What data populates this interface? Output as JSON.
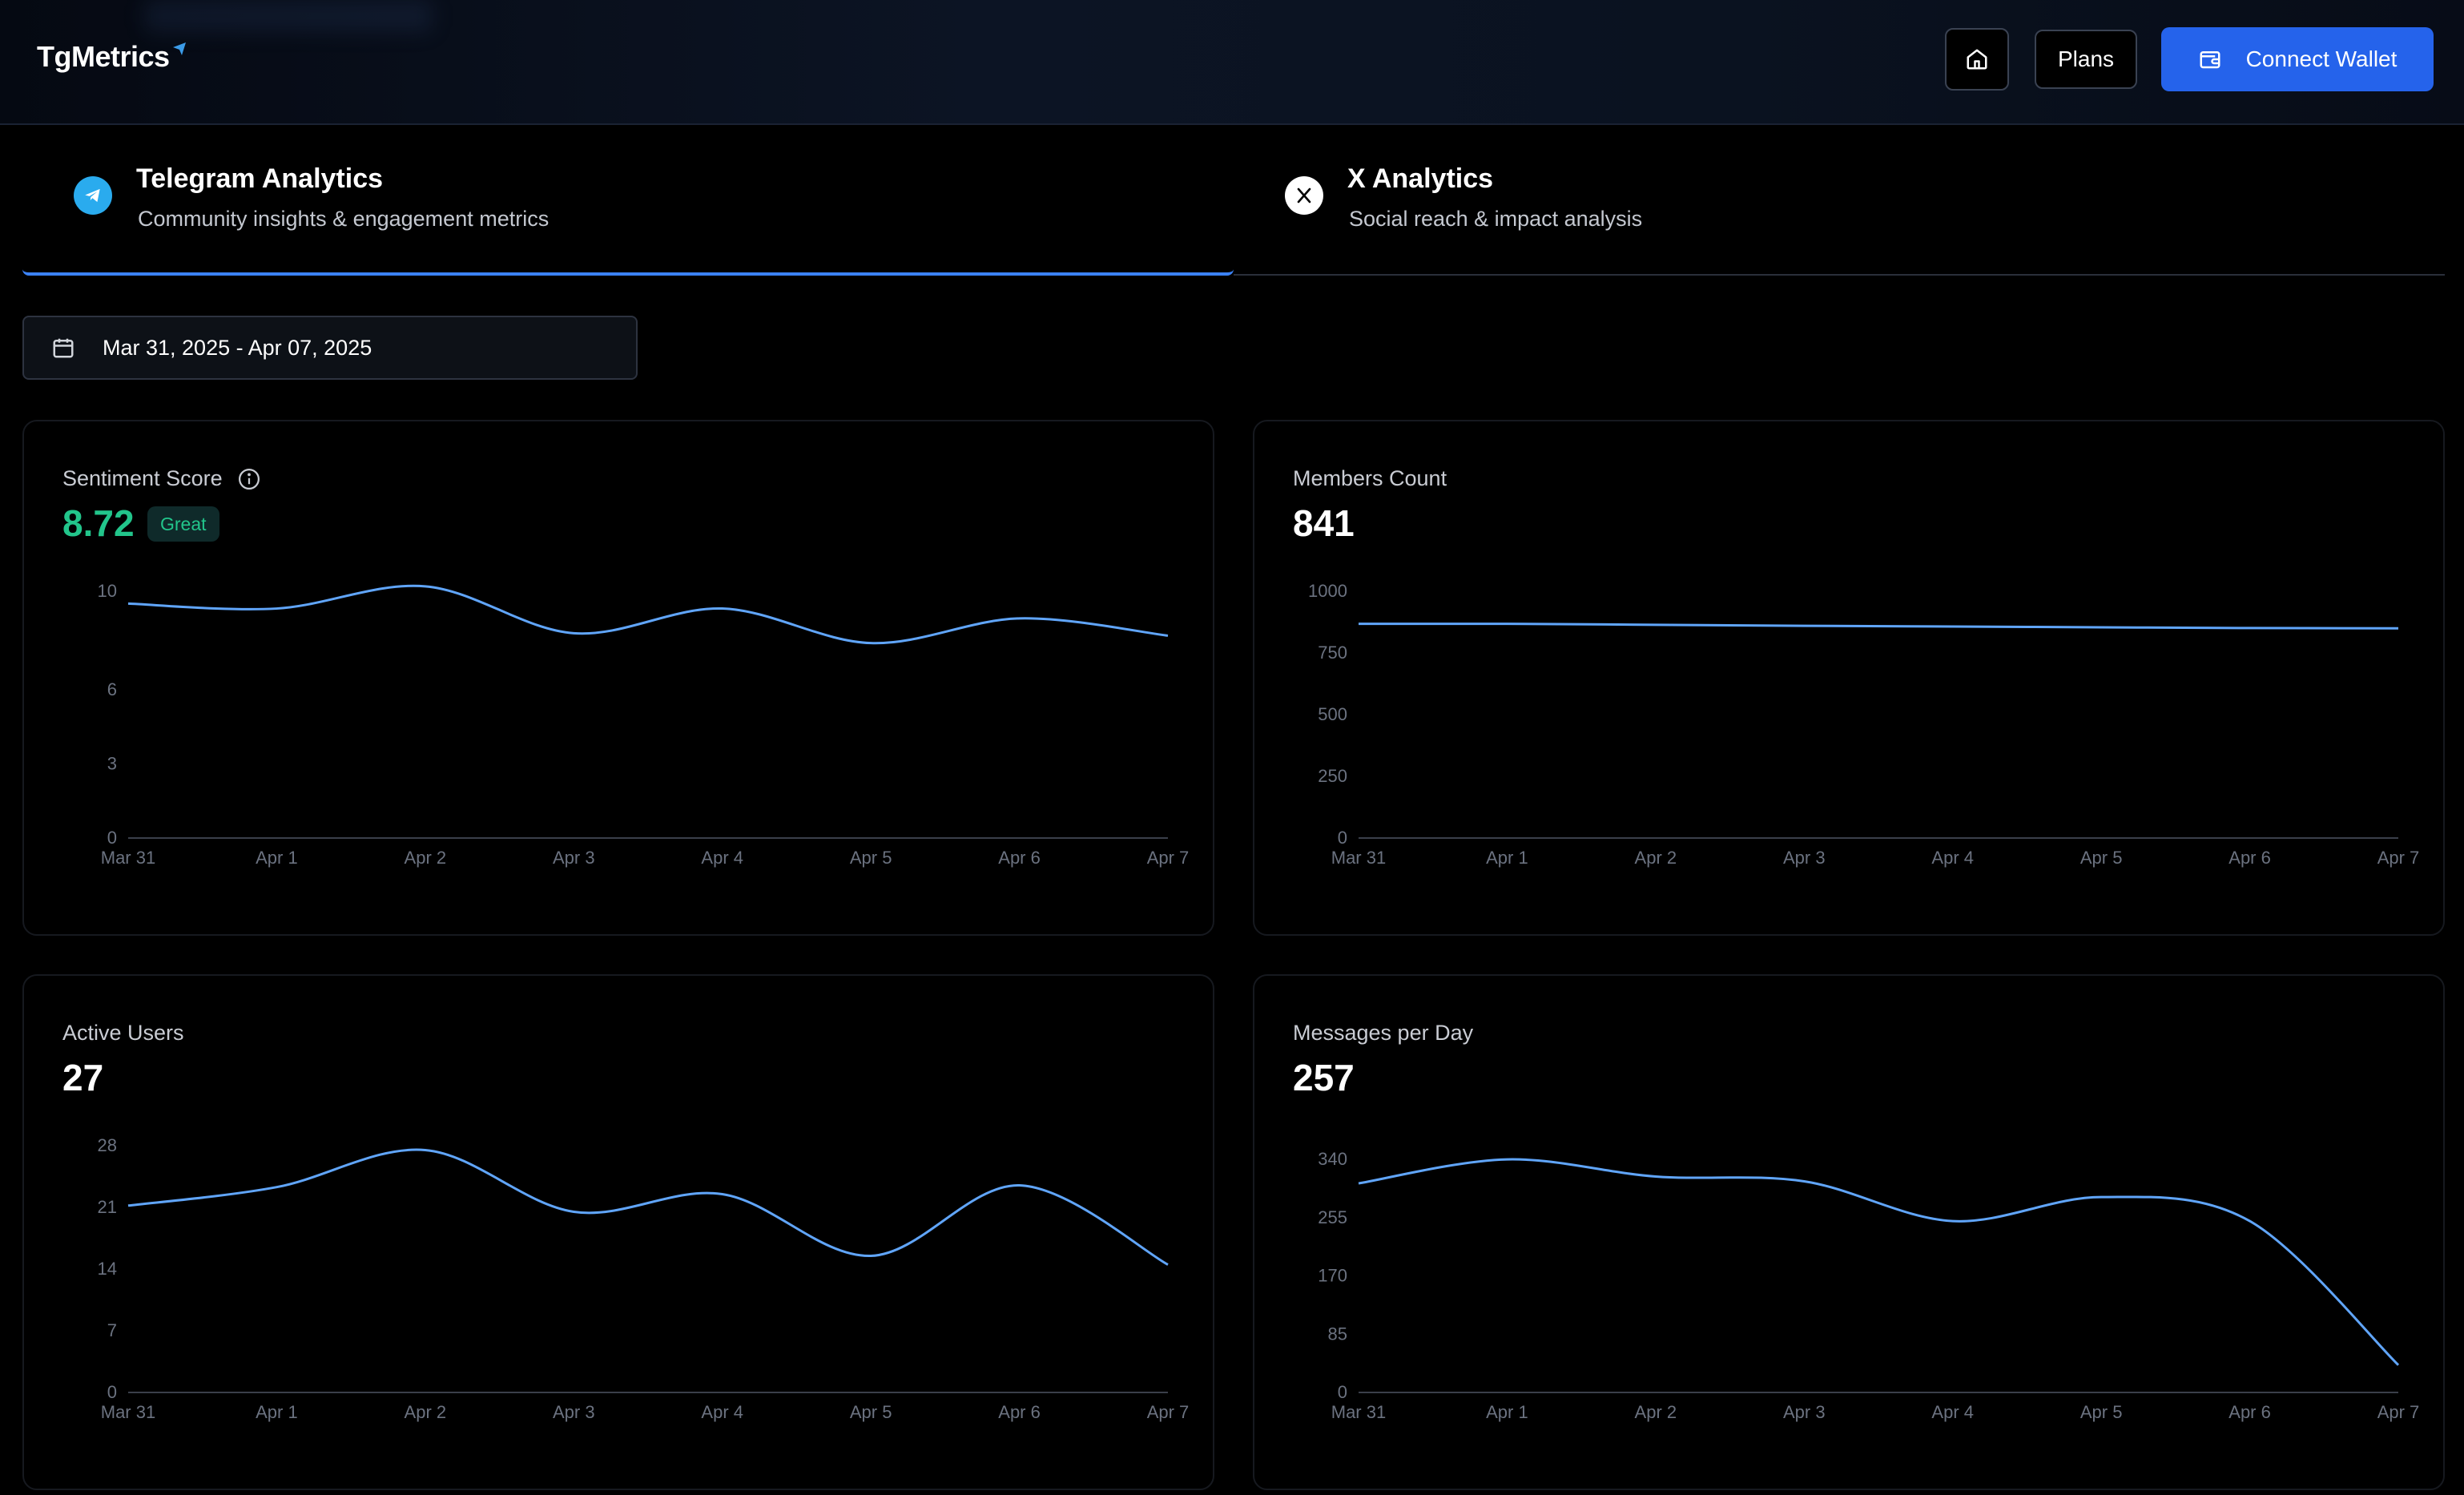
{
  "header": {
    "logo_text": "TgMetrics",
    "home_icon": "home-icon",
    "plans_label": "Plans",
    "wallet_icon": "wallet-icon",
    "wallet_label": "Connect Wallet"
  },
  "tabs": [
    {
      "title": "Telegram Analytics",
      "subtitle": "Community insights & engagement metrics",
      "icon": "telegram-icon",
      "active": true
    },
    {
      "title": "X Analytics",
      "subtitle": "Social reach & impact analysis",
      "icon": "x-logo-icon",
      "active": false
    }
  ],
  "date_range": {
    "icon": "calendar-icon",
    "value": "Mar 31, 2025 - Apr 07, 2025"
  },
  "colors": {
    "accent": "#2563eb",
    "line": "#60a5fa",
    "positive": "#22c58b"
  },
  "cards": [
    {
      "label": "Sentiment Score",
      "value": "8.72",
      "badge": "Great",
      "info_icon": "info-icon"
    },
    {
      "label": "Members Count",
      "value": "841"
    },
    {
      "label": "Active Users",
      "value": "27"
    },
    {
      "label": "Messages per Day",
      "value": "257"
    }
  ],
  "chart_data": [
    {
      "type": "line",
      "x": [
        "Mar 31",
        "Apr 1",
        "Apr 2",
        "Apr 3",
        "Apr 4",
        "Apr 5",
        "Apr 6",
        "Apr 7"
      ],
      "yticks": [
        "0",
        "3",
        "6",
        "10"
      ],
      "ylim": [
        0,
        10
      ],
      "series": [
        {
          "values": [
            9.5,
            9.3,
            10.2,
            8.3,
            9.3,
            7.9,
            8.9,
            8.2
          ]
        }
      ]
    },
    {
      "type": "line",
      "x": [
        "Mar 31",
        "Apr 1",
        "Apr 2",
        "Apr 3",
        "Apr 4",
        "Apr 5",
        "Apr 6",
        "Apr 7"
      ],
      "yticks": [
        "0",
        "250",
        "500",
        "750",
        "1000"
      ],
      "ylim": [
        0,
        1000
      ],
      "series": [
        {
          "values": [
            868,
            868,
            864,
            860,
            857,
            854,
            851,
            850
          ]
        }
      ]
    },
    {
      "type": "line",
      "x": [
        "Mar 31",
        "Apr 1",
        "Apr 2",
        "Apr 3",
        "Apr 4",
        "Apr 5",
        "Apr 6",
        "Apr 7"
      ],
      "yticks": [
        "0",
        "7",
        "14",
        "21",
        "28"
      ],
      "ylim": [
        0,
        28
      ],
      "series": [
        {
          "values": [
            21.2,
            23.3,
            27.5,
            20.5,
            22.5,
            15.5,
            23.5,
            14.5
          ]
        }
      ]
    },
    {
      "type": "line",
      "x": [
        "Mar 31",
        "Apr 1",
        "Apr 2",
        "Apr 3",
        "Apr 4",
        "Apr 5",
        "Apr 6",
        "Apr 7"
      ],
      "yticks": [
        "0",
        "85",
        "170",
        "255",
        "340"
      ],
      "ylim": [
        0,
        360
      ],
      "series": [
        {
          "values": [
            305,
            340,
            315,
            308,
            250,
            285,
            250,
            40
          ]
        }
      ]
    }
  ]
}
